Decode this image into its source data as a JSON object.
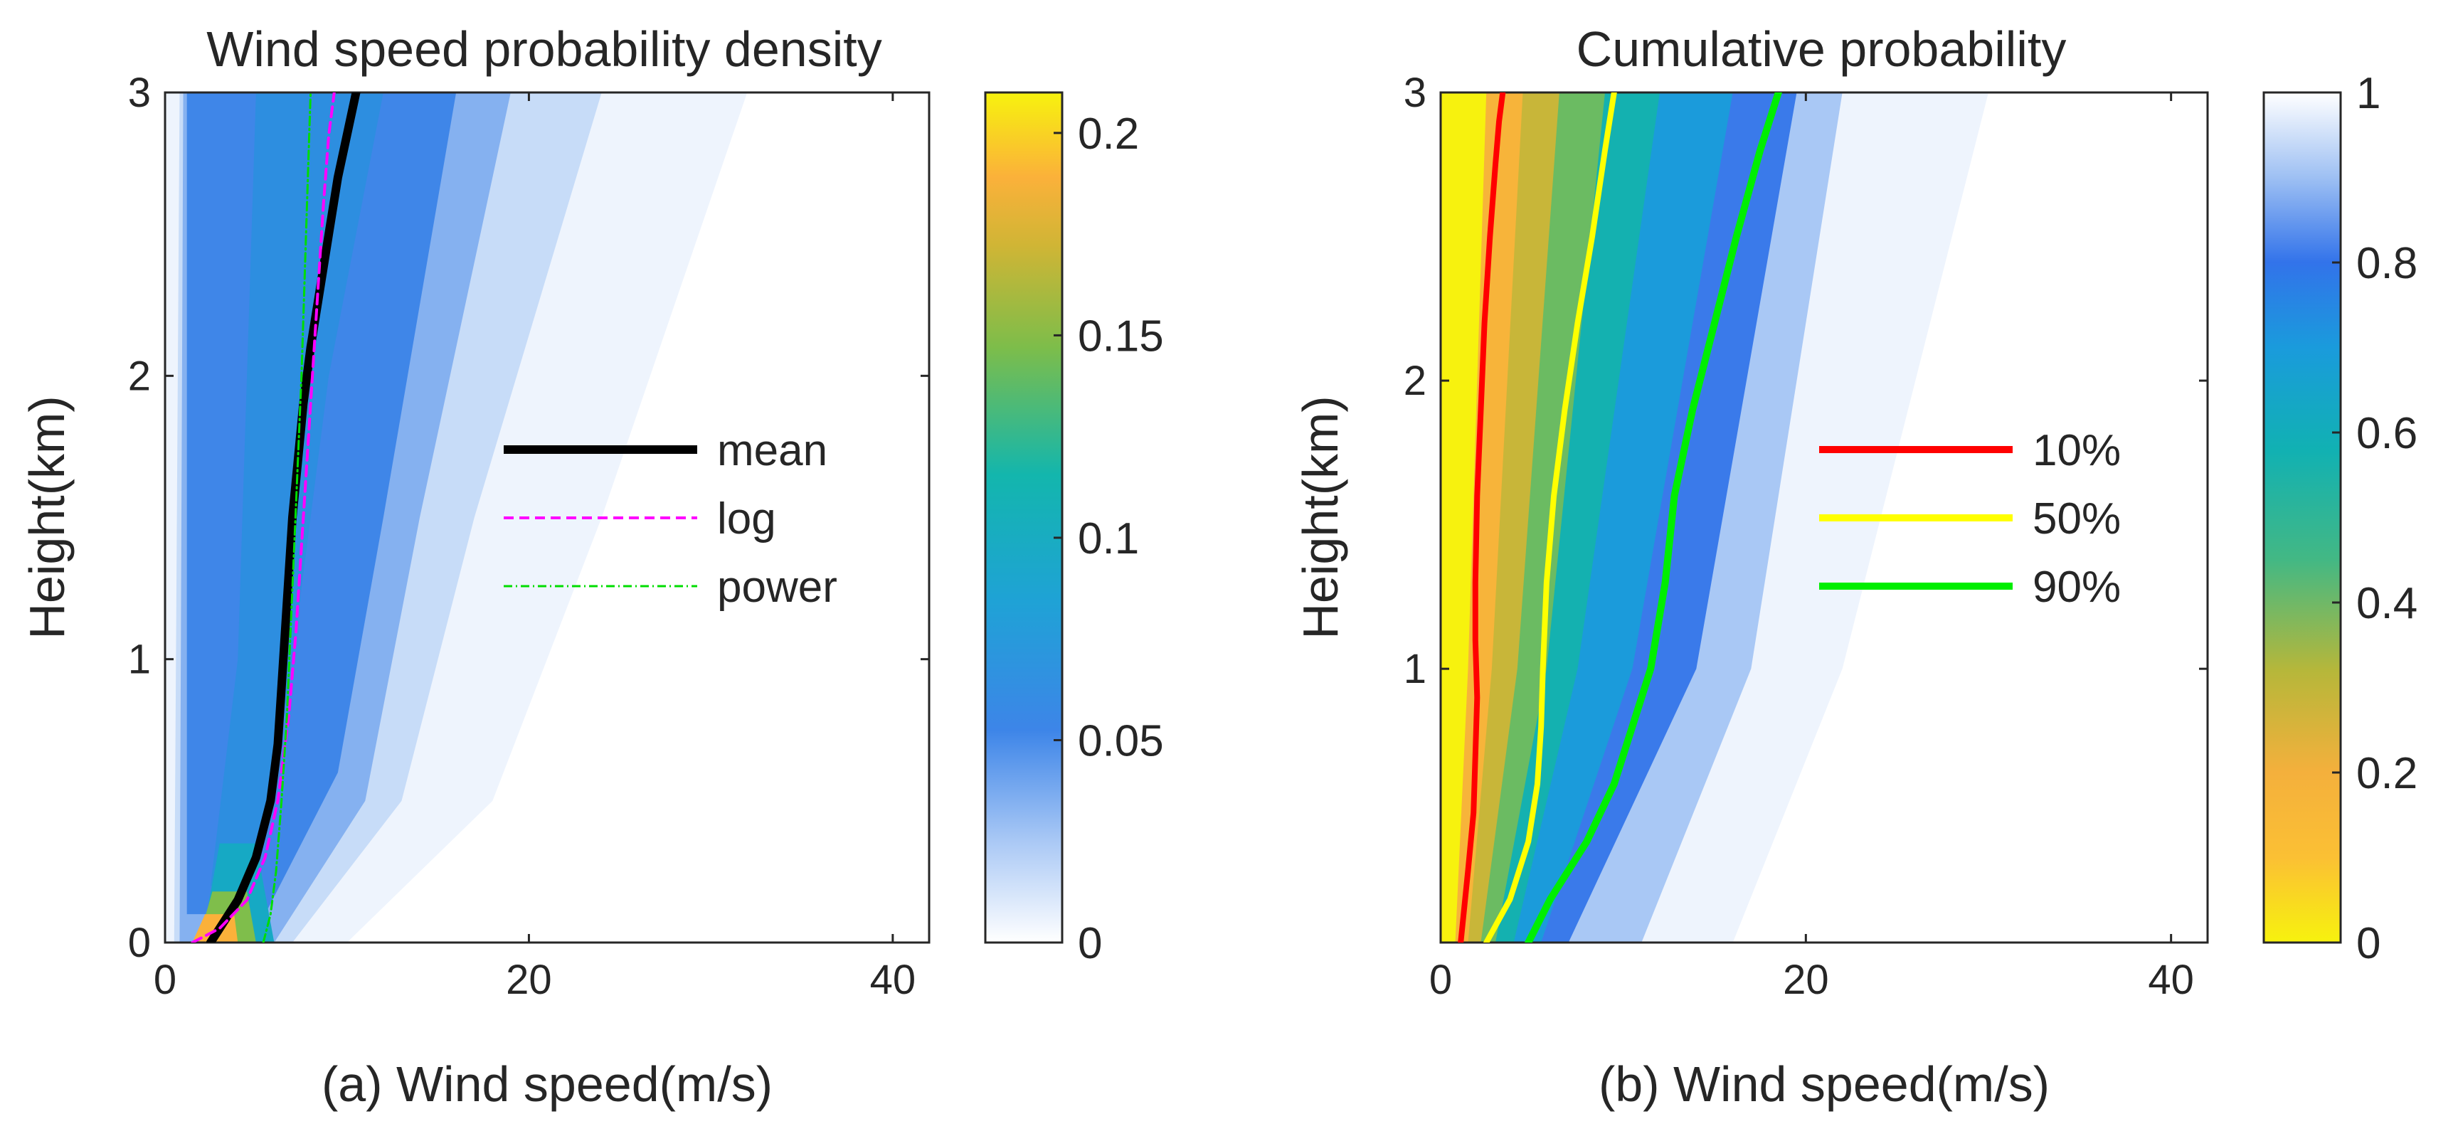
{
  "chart_data": [
    {
      "type": "heatmap",
      "panel": "a",
      "title": "Wind speed probability density",
      "xlabel": "(a) Wind speed(m/s)",
      "ylabel": "Height(km)",
      "xlim": [
        0,
        42
      ],
      "ylim": [
        0,
        3
      ],
      "xticks": [
        0,
        20,
        40
      ],
      "yticks": [
        0,
        1,
        2,
        3
      ],
      "colorbar": {
        "min": 0,
        "max": 0.21,
        "ticks": [
          0,
          0.05,
          0.1,
          0.15,
          0.2
        ],
        "colormap": "parula-reversed (white-blue-teal-green-yellow)"
      },
      "series": [
        {
          "name": "mean",
          "style": "solid",
          "color": "#000000",
          "x": [
            2.5,
            3.0,
            4.0,
            5.0,
            5.8,
            6.2,
            6.4,
            6.6,
            6.8,
            7.0,
            7.3,
            7.6,
            8.0,
            8.5,
            9.0,
            9.5,
            10.0,
            10.5
          ],
          "y": [
            0.0,
            0.05,
            0.15,
            0.3,
            0.5,
            0.7,
            0.9,
            1.1,
            1.3,
            1.5,
            1.7,
            1.9,
            2.1,
            2.3,
            2.5,
            2.7,
            2.85,
            3.0
          ]
        },
        {
          "name": "log",
          "style": "dashed",
          "color": "#ff00ff",
          "x": [
            1.5,
            3.0,
            4.5,
            5.5,
            6.2,
            6.8,
            7.2,
            7.5,
            7.8,
            8.1,
            8.4,
            8.7,
            9.0,
            9.3
          ],
          "y": [
            0.0,
            0.05,
            0.15,
            0.3,
            0.5,
            0.8,
            1.1,
            1.4,
            1.7,
            2.0,
            2.3,
            2.6,
            2.85,
            3.0
          ]
        },
        {
          "name": "power",
          "style": "dash-dot",
          "color": "#00dd00",
          "x": [
            5.4,
            5.8,
            6.1,
            6.4,
            6.7,
            6.9,
            7.1,
            7.3,
            7.5,
            7.7,
            7.9,
            8.0
          ],
          "y": [
            0.0,
            0.1,
            0.25,
            0.5,
            0.8,
            1.1,
            1.4,
            1.7,
            2.0,
            2.4,
            2.8,
            3.0
          ]
        }
      ],
      "legend": {
        "position": "center-right",
        "entries": [
          "mean",
          "log",
          "power"
        ]
      }
    },
    {
      "type": "heatmap",
      "panel": "b",
      "title": "Cumulative probability",
      "xlabel": "(b) Wind speed(m/s)",
      "ylabel": "Height(km)",
      "xlim": [
        0,
        42
      ],
      "ylim": [
        0.05,
        3
      ],
      "xticks": [
        0,
        20,
        40
      ],
      "yticks": [
        1,
        2,
        3
      ],
      "colorbar": {
        "min": 0,
        "max": 1,
        "ticks": [
          0,
          0.2,
          0.4,
          0.6,
          0.8,
          1
        ],
        "colormap": "parula (yellow-green-teal-blue-white)"
      },
      "series": [
        {
          "name": "10%",
          "color": "#ff0000",
          "x": [
            1.1,
            1.5,
            1.8,
            1.9,
            2.0,
            1.9,
            1.9,
            2.0,
            2.2,
            2.4,
            2.7,
            3.0,
            3.2,
            3.4
          ],
          "y": [
            0.05,
            0.3,
            0.5,
            0.7,
            0.9,
            1.1,
            1.3,
            1.6,
            1.9,
            2.2,
            2.5,
            2.75,
            2.9,
            3.0
          ]
        },
        {
          "name": "50%",
          "color": "#ffff00",
          "x": [
            2.5,
            3.8,
            4.8,
            5.3,
            5.5,
            5.6,
            5.8,
            6.2,
            6.8,
            7.5,
            8.3,
            9.0,
            9.5
          ],
          "y": [
            0.05,
            0.2,
            0.4,
            0.6,
            0.8,
            1.0,
            1.3,
            1.6,
            1.9,
            2.2,
            2.5,
            2.8,
            3.0
          ]
        },
        {
          "name": "90%",
          "color": "#00ee00",
          "x": [
            4.8,
            6.0,
            8.0,
            9.5,
            10.5,
            11.5,
            12.3,
            12.8,
            13.8,
            15.0,
            16.2,
            17.5,
            18.5
          ],
          "y": [
            0.05,
            0.2,
            0.4,
            0.6,
            0.8,
            1.0,
            1.3,
            1.6,
            1.9,
            2.2,
            2.5,
            2.8,
            3.0
          ]
        }
      ],
      "legend": {
        "position": "center-right",
        "entries": [
          "10%",
          "50%",
          "90%"
        ]
      }
    }
  ]
}
